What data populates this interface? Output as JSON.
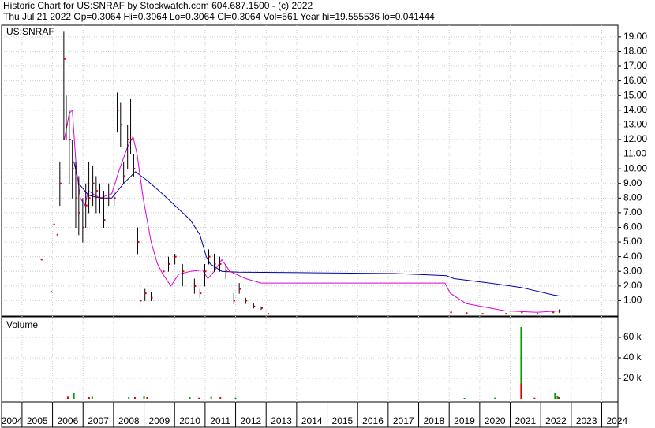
{
  "chart_data": {
    "type": "stock",
    "title": "Historic Chart for US:SNRAF by Stockwatch.com 604.687.1500 - (c) 2022",
    "subtitle": "Thu Jul 21 2022  Op=0.3064  Hi=0.3064  Lo=0.3064  Cl=0.3064  Vol=561  Year hi=19.555536  lo=0.041444",
    "price_label": "US:SNRAF",
    "volume_label": "Volume",
    "xlim": [
      2004.33,
      2024.53
    ],
    "xticks": [
      2004,
      2005,
      2006,
      2007,
      2008,
      2009,
      2010,
      2011,
      2012,
      2013,
      2014,
      2015,
      2016,
      2017,
      2018,
      2019,
      2020,
      2021,
      2022,
      2023,
      2024
    ],
    "ylim": [
      0,
      19.8
    ],
    "yticks": [
      {
        "value": 1,
        "label": "1.00"
      },
      {
        "value": 2,
        "label": "2.00"
      },
      {
        "value": 3,
        "label": "3.00"
      },
      {
        "value": 4,
        "label": "4.00"
      },
      {
        "value": 5,
        "label": "5.00"
      },
      {
        "value": 6,
        "label": "6.00"
      },
      {
        "value": 7,
        "label": "7.00"
      },
      {
        "value": 8,
        "label": "8.00"
      },
      {
        "value": 9,
        "label": "9.00"
      },
      {
        "value": 10,
        "label": "10.00"
      },
      {
        "value": 11,
        "label": "11.00"
      },
      {
        "value": 12,
        "label": "12.00"
      },
      {
        "value": 13,
        "label": "13.00"
      },
      {
        "value": 14,
        "label": "14.00"
      },
      {
        "value": 15,
        "label": "15.00"
      },
      {
        "value": 16,
        "label": "16.00"
      },
      {
        "value": 17,
        "label": "17.00"
      },
      {
        "value": 18,
        "label": "18.00"
      },
      {
        "value": 19,
        "label": "19.00"
      }
    ],
    "y2lim": [
      0,
      80000
    ],
    "y2ticks": [
      {
        "value": 20000,
        "label": "20 k"
      },
      {
        "value": 40000,
        "label": "40 k"
      },
      {
        "value": 60000,
        "label": "60 k"
      }
    ],
    "grid": true,
    "price": {
      "bar_color": "#000000",
      "close_color": "#dd0000",
      "x": [
        2005.62,
        2005.93,
        2006.03,
        2006.14,
        2006.24,
        2006.37,
        2006.45,
        2006.55,
        2006.65,
        2006.76,
        2006.86,
        2006.99,
        2007.09,
        2007.19,
        2007.32,
        2007.43,
        2007.55,
        2007.68,
        2007.84,
        2008.02,
        2008.12,
        2008.23,
        2008.33,
        2008.46,
        2008.56,
        2008.66,
        2008.79,
        2008.87,
        2009.03,
        2009.23,
        2009.62,
        2009.8,
        2010.01,
        2010.26,
        2010.65,
        2010.83,
        2010.99,
        2011.12,
        2011.3,
        2011.48,
        2011.68,
        2011.94,
        2012.12,
        2012.33,
        2012.59,
        2012.84,
        2013.05,
        2019.04,
        2019.55,
        2020.07,
        2020.84,
        2021.36,
        2021.87,
        2022.39,
        2022.6
      ],
      "high": [
        3.8,
        1.6,
        6.2,
        5.5,
        10.5,
        19.4,
        15,
        14,
        12,
        10.5,
        9.5,
        8,
        9,
        10.5,
        10.2,
        9.5,
        9,
        8.5,
        9,
        8.5,
        15.2,
        14.5,
        10.5,
        13,
        14.8,
        11,
        6,
        2.5,
        1.8,
        1.6,
        3.5,
        4,
        4.2,
        3.5,
        2.5,
        1.8,
        3.5,
        4.5,
        4.2,
        4,
        3.5,
        1.5,
        2.2,
        1.2,
        0.8,
        0.6,
        0.1,
        0.2,
        0.15,
        0.1,
        0.1,
        0.2,
        0.1,
        0.2,
        0.4
      ],
      "low": [
        3.8,
        1.6,
        6.2,
        5.5,
        7.5,
        12,
        12,
        9,
        8,
        6,
        5.5,
        5,
        6,
        7,
        7.5,
        7,
        7,
        6,
        7.5,
        7.5,
        12.5,
        11.5,
        9,
        10,
        11,
        9.5,
        4.2,
        0.5,
        1,
        1,
        2.5,
        3,
        3.5,
        2,
        1.5,
        1.2,
        2,
        3.5,
        3,
        3,
        2.5,
        0.8,
        1.5,
        0.8,
        0.5,
        0.4,
        0.1,
        0.2,
        0.15,
        0.1,
        0.1,
        0.2,
        0.1,
        0.2,
        0.2
      ],
      "close": [
        3.8,
        1.6,
        6.2,
        5.5,
        9,
        17.5,
        13,
        12,
        10,
        8,
        7,
        6,
        7.5,
        8,
        9,
        8.5,
        8,
        6.5,
        8,
        8,
        14,
        13,
        9.5,
        12,
        12,
        10,
        5,
        1,
        1.5,
        1.2,
        3,
        3.5,
        4,
        3,
        2,
        1.5,
        3,
        4,
        3.5,
        3.5,
        3,
        1,
        1.8,
        1,
        0.6,
        0.5,
        0.1,
        0.2,
        0.15,
        0.1,
        0.1,
        0.2,
        0.1,
        0.2,
        0.3
      ]
    },
    "ma_long": {
      "color": "#0000aa",
      "x": [
        2006.7,
        2006.86,
        2007.17,
        2007.55,
        2007.94,
        2008.33,
        2008.72,
        2009.1,
        2009.49,
        2010.01,
        2010.52,
        2010.83,
        2011.04,
        2011.17,
        2011.55,
        2012.07,
        2014.65,
        2017.23,
        2018.91,
        2019.16,
        2020.33,
        2021.36,
        2022.39,
        2022.65
      ],
      "values": [
        10.5,
        9,
        8.2,
        8,
        8,
        9,
        9.8,
        9.2,
        8.5,
        7.5,
        6.5,
        5.5,
        4,
        3.5,
        3,
        2.95,
        2.9,
        2.85,
        2.7,
        2.5,
        2.2,
        1.9,
        1.4,
        1.3
      ]
    },
    "ma_short": {
      "color": "#dd00dd",
      "x": [
        2006.39,
        2006.55,
        2006.65,
        2006.78,
        2006.91,
        2007.06,
        2007.17,
        2007.55,
        2007.94,
        2008.2,
        2008.46,
        2008.64,
        2008.77,
        2008.97,
        2009.23,
        2009.44,
        2009.62,
        2009.88,
        2010.13,
        2010.52,
        2010.91,
        2011.09,
        2011.3,
        2011.55,
        2011.81,
        2012.33,
        2012.84,
        2014.65,
        2018.86,
        2019.04,
        2019.55,
        2020.33,
        2020.84,
        2021.87,
        2022.65
      ],
      "values": [
        12,
        13.8,
        14,
        10,
        8,
        7.5,
        8.5,
        8,
        8.3,
        10,
        11.5,
        12.2,
        11,
        8,
        5,
        3.5,
        2.8,
        2,
        2.8,
        3,
        3.1,
        2.5,
        3,
        3.8,
        3,
        2.5,
        2.2,
        2.2,
        2.2,
        1.5,
        0.8,
        0.5,
        0.3,
        0.2,
        0.3
      ]
    },
    "volume_up": {
      "color": "#00a000",
      "x": [
        2006.7,
        2007.3,
        2008.5,
        2009.0,
        2010.5,
        2011.2,
        2012.0,
        2019.5,
        2020.5,
        2021.36,
        2022.47,
        2022.55
      ],
      "values": [
        6000,
        2000,
        1500,
        3000,
        1500,
        2000,
        1000,
        800,
        1000,
        70000,
        6000,
        3000
      ]
    },
    "volume_down": {
      "color": "#dd0000",
      "x": [
        2006.5,
        2007.2,
        2008.7,
        2009.1,
        2010.8,
        2011.5,
        2021.36,
        2021.8,
        2022.6
      ],
      "values": [
        2000,
        1500,
        1500,
        1500,
        1000,
        1500,
        15000,
        1000,
        1500
      ]
    }
  }
}
